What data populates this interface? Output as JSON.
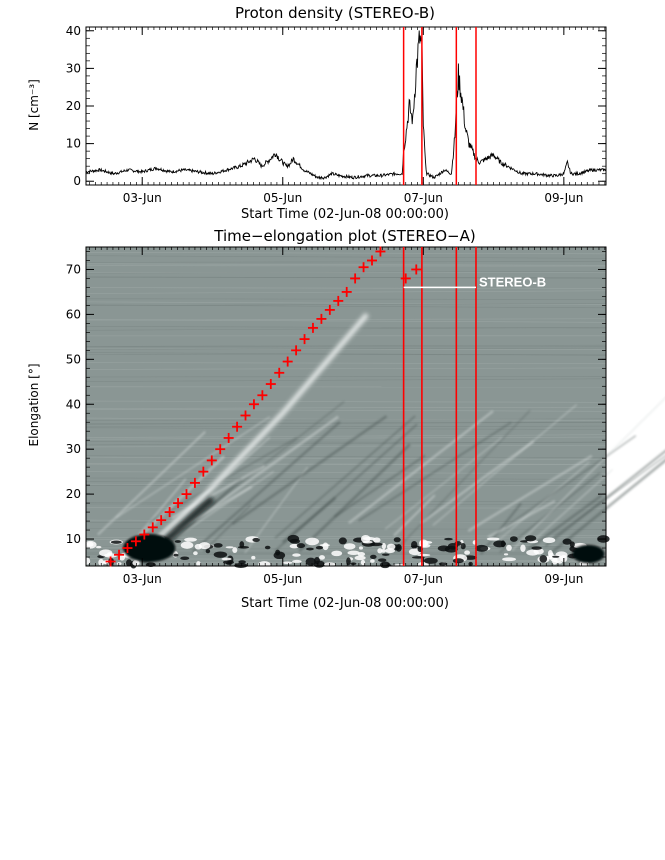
{
  "chart_data": [
    {
      "type": "line",
      "title": "Proton density (STEREO-B)",
      "xlabel": "Start Time (02-Jun-08 00:00:00)",
      "ylabel": "N [cm⁻³]",
      "xlim": [
        0.2,
        7.6
      ],
      "ylim": [
        -1,
        41
      ],
      "xtick_labels": [
        "03-Jun",
        "05-Jun",
        "07-Jun",
        "09-Jun"
      ],
      "xtick_values": [
        1,
        3,
        5,
        7
      ],
      "yticks": [
        0,
        10,
        20,
        30,
        40
      ],
      "series": [
        {
          "x": [
            0.2,
            0.4,
            0.6,
            0.8,
            1.0,
            1.2,
            1.4,
            1.6,
            1.8,
            2.0,
            2.2,
            2.4,
            2.5,
            2.6,
            2.7,
            2.8,
            2.85,
            2.9,
            2.95,
            3.0,
            3.05,
            3.1,
            3.15,
            3.2,
            3.3,
            3.4,
            3.5,
            3.6,
            3.7,
            3.8,
            4.0,
            4.2,
            4.4,
            4.6,
            4.7,
            4.72,
            4.75,
            4.8,
            4.85,
            4.9,
            4.95,
            4.98,
            5.0,
            5.03,
            5.05,
            5.1,
            5.15,
            5.2,
            5.3,
            5.4,
            5.45,
            5.47,
            5.5,
            5.55,
            5.6,
            5.65,
            5.7,
            5.75,
            5.8,
            5.9,
            6.0,
            6.1,
            6.2,
            6.3,
            6.4,
            6.6,
            6.8,
            6.9,
            7.0,
            7.05,
            7.1,
            7.2,
            7.3,
            7.4,
            7.6
          ],
          "values": [
            2.5,
            3,
            2,
            3,
            2.5,
            3.5,
            2.5,
            3,
            2.5,
            2,
            3,
            4,
            5,
            6,
            4,
            5.5,
            6.5,
            7.5,
            6,
            5,
            4,
            4.5,
            6,
            5,
            3,
            2,
            1,
            1,
            2,
            1.5,
            1,
            1.5,
            1.5,
            2,
            2,
            8,
            12,
            20,
            16,
            30,
            38,
            35,
            15,
            5,
            2,
            1.5,
            1,
            1.5,
            3,
            2,
            12,
            20,
            28,
            22,
            14,
            10,
            8,
            6,
            5,
            6,
            7,
            5,
            4,
            3,
            2,
            2,
            1.5,
            1.5,
            2,
            5,
            2,
            2,
            2.5,
            3,
            3
          ]
        }
      ],
      "vertical_lines": [
        4.72,
        4.98,
        5.47,
        5.75
      ],
      "colors": {
        "line": "#000000",
        "markers": "#ff0000"
      }
    },
    {
      "type": "scatter",
      "title": "Time−elongation plot (STEREO−A)",
      "xlabel": "Start Time (02-Jun-08 00:00:00)",
      "ylabel": "Elongation [°]",
      "xlim": [
        0.2,
        7.6
      ],
      "ylim": [
        4,
        75
      ],
      "xtick_labels": [
        "03-Jun",
        "05-Jun",
        "07-Jun",
        "09-Jun"
      ],
      "xtick_values": [
        1,
        3,
        5,
        7
      ],
      "yticks": [
        10,
        20,
        30,
        40,
        50,
        60,
        70
      ],
      "series": [
        {
          "x": [
            0.55,
            0.67,
            0.79,
            0.91,
            1.03,
            1.15,
            1.27,
            1.39,
            1.51,
            1.63,
            1.75,
            1.87,
            1.99,
            2.11,
            2.23,
            2.35,
            2.47,
            2.59,
            2.71,
            2.83,
            2.95,
            3.07,
            3.19,
            3.31,
            3.43,
            3.55,
            3.67,
            3.79,
            3.91,
            4.03,
            4.15,
            4.27,
            4.39,
            4.51,
            4.63,
            4.75,
            4.9
          ],
          "values": [
            5,
            6.5,
            8,
            9.5,
            11,
            12.6,
            14.2,
            16,
            18,
            20,
            22.5,
            25,
            27.5,
            30,
            32.5,
            35,
            37.5,
            40,
            42,
            44.5,
            47,
            49.5,
            52,
            54.5,
            57,
            59,
            61,
            63,
            65,
            68,
            70.5,
            72,
            74,
            76,
            78,
            68,
            70
          ]
        }
      ],
      "annotation": "STEREO-B",
      "annotation_y": 66,
      "vertical_lines": [
        4.72,
        4.98,
        5.47,
        5.75
      ],
      "colors": {
        "background": "#8a9694",
        "markers": "#ff0000",
        "vlines": "#ff0000",
        "annotation": "#ffffff"
      }
    }
  ]
}
